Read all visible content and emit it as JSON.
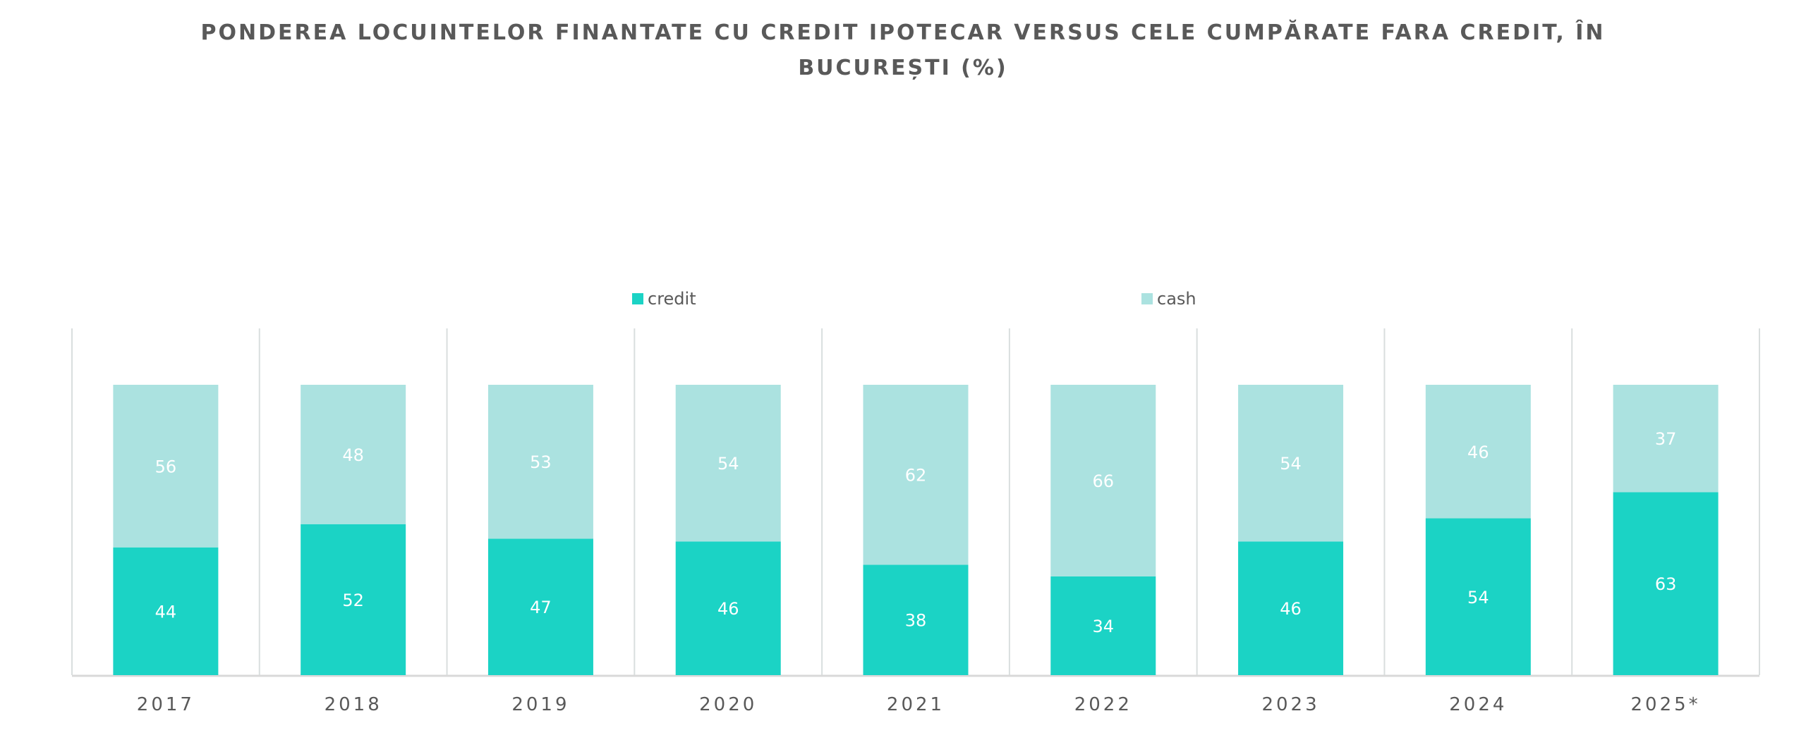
{
  "chart_data": {
    "type": "bar",
    "stacked": true,
    "title": "PONDEREA LOCUINTELOR FINANTATE CU CREDIT IPOTECAR VERSUS CELE CUMPĂRATE FARA CREDIT, ÎN BUCUREȘTI (%)",
    "categories": [
      "2017",
      "2018",
      "2019",
      "2020",
      "2021",
      "2022",
      "2023",
      "2024",
      "2025*"
    ],
    "series": [
      {
        "name": "credit",
        "color": "#1BD3C5",
        "values": [
          44,
          52,
          47,
          46,
          38,
          34,
          46,
          54,
          63
        ]
      },
      {
        "name": "cash",
        "color": "#ABE2E0",
        "values": [
          56,
          48,
          53,
          54,
          62,
          66,
          54,
          46,
          37
        ]
      }
    ],
    "ylim": [
      0,
      100
    ],
    "xlabel": "",
    "ylabel": "",
    "legend": "top",
    "grid": "vertical category separators",
    "data_labels": true
  }
}
